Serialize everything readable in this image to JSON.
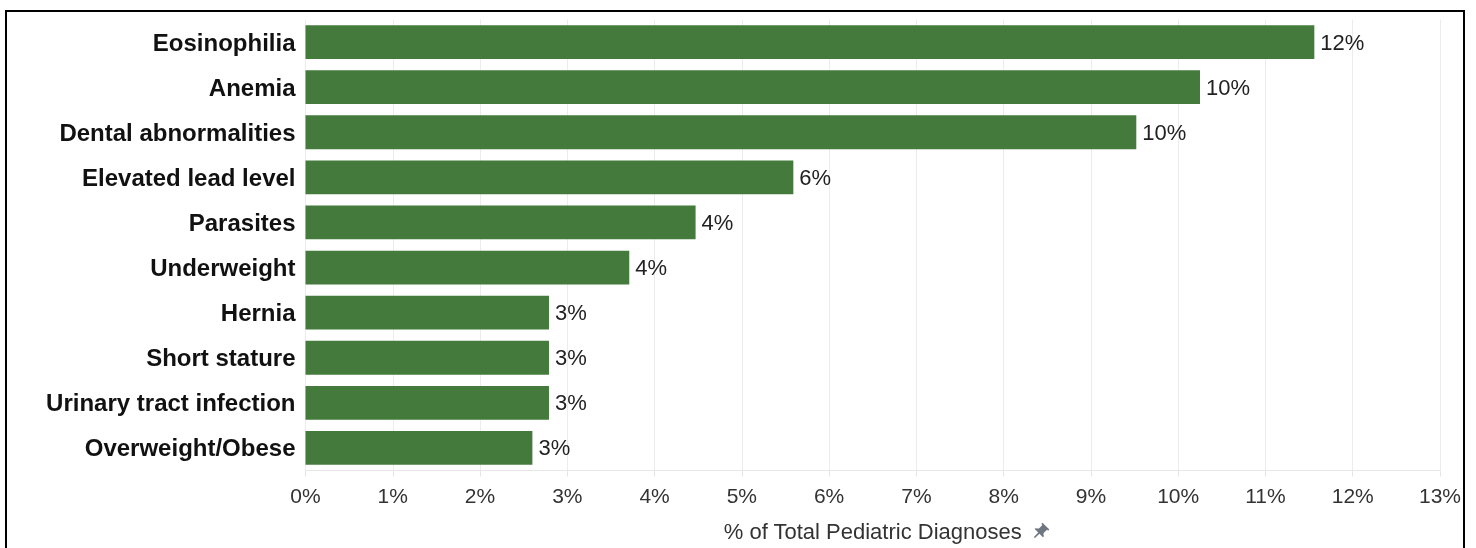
{
  "chart_data": {
    "type": "bar",
    "orientation": "horizontal",
    "xlabel": "% of Total Pediatric Diagnoses",
    "categories": [
      "Eosinophilia",
      "Anemia",
      "Dental abnormalities",
      "Elevated lead level",
      "Parasites",
      "Underweight",
      "Hernia",
      "Short stature",
      "Urinary tract infection",
      "Overweight/Obese"
    ],
    "values": [
      11.56,
      10.25,
      9.52,
      5.59,
      4.47,
      3.71,
      2.79,
      2.79,
      2.79,
      2.6
    ],
    "color": "#447b3c",
    "value_labels": [
      "12%",
      "10%",
      "10%",
      "6%",
      "4%",
      "4%",
      "3%",
      "3%",
      "3%",
      "3%"
    ],
    "xlim": [
      0,
      13
    ],
    "xticks": [
      {
        "value": 0,
        "label": "0%"
      },
      {
        "value": 1,
        "label": "1%"
      },
      {
        "value": 2,
        "label": "2%"
      },
      {
        "value": 3,
        "label": "3%"
      },
      {
        "value": 4,
        "label": "4%"
      },
      {
        "value": 5,
        "label": "5%"
      },
      {
        "value": 6,
        "label": "6%"
      },
      {
        "value": 7,
        "label": "7%"
      },
      {
        "value": 8,
        "label": "8%"
      },
      {
        "value": 9,
        "label": "9%"
      },
      {
        "value": 10,
        "label": "10%"
      },
      {
        "value": 11,
        "label": "11%"
      },
      {
        "value": 12,
        "label": "12%"
      },
      {
        "value": 13,
        "label": "13%"
      }
    ],
    "grid": "x"
  }
}
